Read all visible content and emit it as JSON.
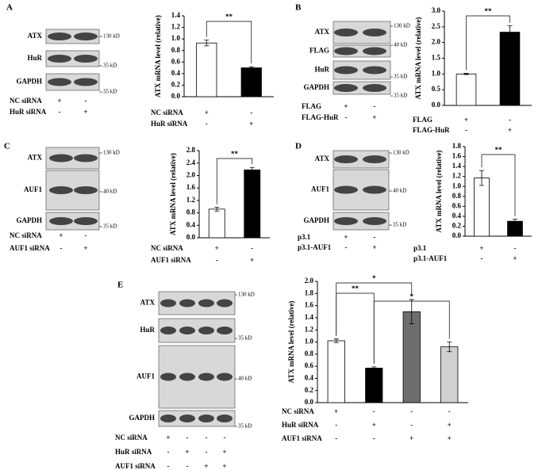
{
  "blots": [
    {
      "panel": "A",
      "rows": [
        "ATX",
        "HuR",
        "GAPDH"
      ],
      "markers": [
        "130 kD",
        "35 kD",
        "35 kD"
      ],
      "conditions": [
        {
          "name": "NC siRNA",
          "marks": [
            "+",
            "-"
          ]
        },
        {
          "name": "HuR siRNA",
          "marks": [
            "-",
            "+"
          ]
        }
      ]
    },
    {
      "panel": "B",
      "rows": [
        "ATX",
        "FLAG",
        "HuR",
        "GAPDH"
      ],
      "markers": [
        "130 kD",
        "40 kD",
        "35 kD",
        "35 kD"
      ],
      "conditions": [
        {
          "name": "FLAG",
          "marks": [
            "+",
            "-"
          ]
        },
        {
          "name": "FLAG-HuR",
          "marks": [
            "-",
            "+"
          ]
        }
      ]
    },
    {
      "panel": "C",
      "rows": [
        "ATX",
        "AUF1",
        "GAPDH"
      ],
      "markers": [
        "130 kD",
        "40 kD",
        "35 kD"
      ],
      "conditions": [
        {
          "name": "NC siRNA",
          "marks": [
            "+",
            "-"
          ]
        },
        {
          "name": "AUF1 siRNA",
          "marks": [
            "-",
            "+"
          ]
        }
      ]
    },
    {
      "panel": "D",
      "rows": [
        "ATX",
        "AUF1",
        "GAPDH"
      ],
      "markers": [
        "130 kD",
        "40 kD",
        "35 kD"
      ],
      "conditions": [
        {
          "name": "p3.1",
          "marks": [
            "+",
            "-"
          ]
        },
        {
          "name": "p3.1-AUF1",
          "marks": [
            "-",
            "+"
          ]
        }
      ]
    },
    {
      "panel": "E",
      "rows": [
        "ATX",
        "HuR",
        "AUF1",
        "GAPDH"
      ],
      "markers": [
        "130 kD",
        "35 kD",
        "40 kD",
        "35 kD"
      ],
      "conditions": [
        {
          "name": "NC siRNA",
          "marks": [
            "+",
            "-",
            "-",
            "-"
          ]
        },
        {
          "name": "HuR siRNA",
          "marks": [
            "-",
            "+",
            "-",
            "+"
          ]
        },
        {
          "name": "AUF1 siRNA",
          "marks": [
            "-",
            "-",
            "+",
            "+"
          ]
        }
      ]
    }
  ],
  "chart_data": [
    {
      "type": "bar",
      "y_label": "ATX mRNA level (relative)",
      "values": [
        0.93,
        0.5
      ],
      "errors": [
        0.05,
        0.02
      ],
      "colors": [
        "#ffffff",
        "#000000"
      ],
      "ylim": [
        0,
        1.4
      ],
      "yticks": [
        {
          "value": 0,
          "label": "0.0"
        },
        0.2,
        0.4,
        0.6,
        0.8,
        {
          "value": 1,
          "label": "1.0"
        },
        1.2,
        1.4
      ],
      "brackets": [
        {
          "label": "**",
          "between": [
            0,
            1
          ]
        }
      ],
      "conditions": [
        {
          "name": "NC siRNA",
          "marks": [
            "+",
            "-"
          ]
        },
        {
          "name": "HuR siRNA",
          "marks": [
            "-",
            "+"
          ]
        }
      ]
    },
    {
      "type": "bar",
      "y_label": "ATX mRNA level (relative)",
      "values": [
        1.0,
        2.33
      ],
      "errors": [
        0.02,
        0.2
      ],
      "colors": [
        "#ffffff",
        "#000000"
      ],
      "ylim": [
        0,
        3
      ],
      "yticks": [
        {
          "value": 0,
          "label": "0.0"
        },
        0.5,
        {
          "value": 1,
          "label": "1.0"
        },
        1.5,
        {
          "value": 2,
          "label": "2.0"
        },
        2.5,
        {
          "value": 3,
          "label": "3.0"
        }
      ],
      "brackets": [
        {
          "label": "**",
          "between": [
            0,
            1
          ]
        }
      ],
      "conditions": [
        {
          "name": "FLAG",
          "marks": [
            "+",
            "-"
          ]
        },
        {
          "name": "FLAG-HuR",
          "marks": [
            "-",
            "+"
          ]
        }
      ]
    },
    {
      "type": "bar",
      "y_label": "ATX mRNA level (relative)",
      "values": [
        0.92,
        2.18
      ],
      "errors": [
        0.06,
        0.08
      ],
      "colors": [
        "#ffffff",
        "#000000"
      ],
      "ylim": [
        0,
        2.8
      ],
      "yticks": [
        {
          "value": 0,
          "label": "0.0"
        },
        0.4,
        0.8,
        1.2,
        1.6,
        {
          "value": 2,
          "label": "2.0"
        },
        2.4,
        2.8
      ],
      "brackets": [
        {
          "label": "**",
          "between": [
            0,
            1
          ]
        }
      ],
      "conditions": [
        {
          "name": "NC siRNA",
          "marks": [
            "+",
            "-"
          ]
        },
        {
          "name": "AUF1 siRNA",
          "marks": [
            "-",
            "+"
          ]
        }
      ]
    },
    {
      "type": "bar",
      "y_label": "ATX mRNA level (relative)",
      "values": [
        1.17,
        0.3
      ],
      "errors": [
        0.15,
        0.04
      ],
      "colors": [
        "#ffffff",
        "#000000"
      ],
      "ylim": [
        0,
        1.8
      ],
      "yticks": [
        {
          "value": 0,
          "label": "0.0"
        },
        0.2,
        0.4,
        0.6,
        0.8,
        {
          "value": 1,
          "label": "1.0"
        },
        1.2,
        1.4,
        1.6,
        1.8
      ],
      "brackets": [
        {
          "label": "**",
          "between": [
            0,
            1
          ]
        }
      ],
      "conditions": [
        {
          "name": "p3.1",
          "marks": [
            "+",
            "-"
          ]
        },
        {
          "name": "p3.1-AUF1",
          "marks": [
            "-",
            "+"
          ]
        }
      ]
    },
    {
      "type": "bar",
      "y_label": "ATX mRNA level (relative)",
      "values": [
        1.02,
        0.57,
        1.5,
        0.92
      ],
      "errors": [
        0.03,
        0.02,
        0.2,
        0.08
      ],
      "colors": [
        "#ffffff",
        "#000000",
        "#6e6e6e",
        "#d0d0d0"
      ],
      "ylim": [
        0,
        2
      ],
      "yticks": [
        {
          "value": 0,
          "label": "0.0"
        },
        0.2,
        0.4,
        0.6,
        0.8,
        {
          "value": 1,
          "label": "1.0"
        },
        1.2,
        1.4,
        1.6,
        1.8,
        {
          "value": 2,
          "label": "2.0"
        }
      ],
      "brackets": [
        {
          "label": "**",
          "between": [
            0,
            1
          ]
        },
        {
          "label": "*",
          "between": [
            0,
            2
          ]
        },
        {
          "label": "*",
          "between": [
            1,
            3
          ]
        }
      ],
      "conditions": [
        {
          "name": "NC siRNA",
          "marks": [
            "+",
            "-",
            "-",
            "-"
          ]
        },
        {
          "name": "HuR siRNA",
          "marks": [
            "-",
            "+",
            "-",
            "+"
          ]
        },
        {
          "name": "AUF1 siRNA",
          "marks": [
            "-",
            "-",
            "+",
            "+"
          ]
        }
      ]
    }
  ]
}
